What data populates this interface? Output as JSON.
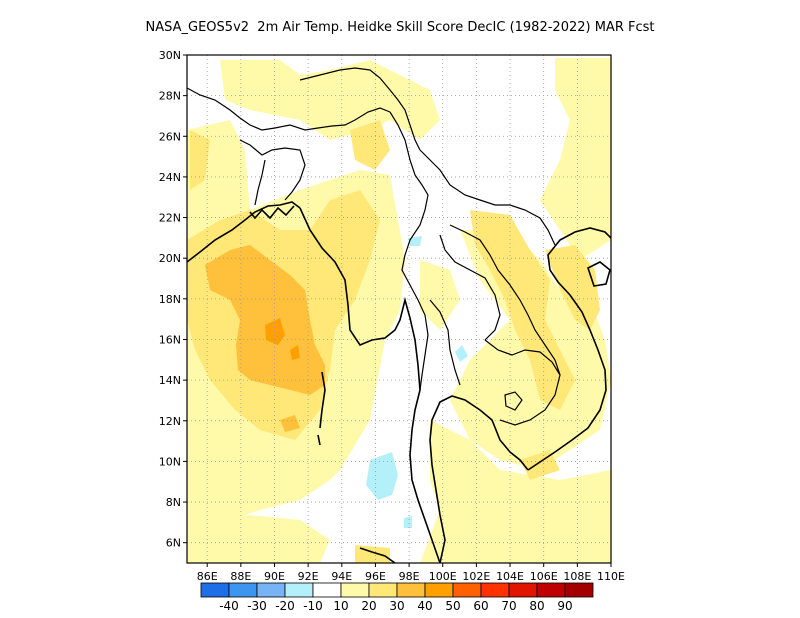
{
  "title": "NASA_GEOS5v2  2m Air Temp. Heidke Skill Score DecIC (1982-2022) MAR Fcst",
  "map": {
    "lat_labels": [
      "6N",
      "8N",
      "10N",
      "12N",
      "14N",
      "16N",
      "18N",
      "20N",
      "22N",
      "24N",
      "26N",
      "28N",
      "30N"
    ],
    "lat_values": [
      6,
      8,
      10,
      12,
      14,
      16,
      18,
      20,
      22,
      24,
      26,
      28,
      30
    ],
    "lon_labels": [
      "86E",
      "88E",
      "90E",
      "92E",
      "94E",
      "96E",
      "98E",
      "100E",
      "102E",
      "104E",
      "106E",
      "108E",
      "110E"
    ],
    "lon_values": [
      86,
      88,
      90,
      92,
      94,
      96,
      98,
      100,
      102,
      104,
      106,
      108,
      110
    ],
    "lon_range": [
      84.8,
      110
    ],
    "lat_range": [
      5,
      30
    ],
    "grid": true
  },
  "colorbar": {
    "colors": [
      "#1e6ee8",
      "#3c96f0",
      "#78b4f5",
      "#b4f0fa",
      "#ffffff",
      "#fffaaa",
      "#ffe878",
      "#ffc03c",
      "#ffa000",
      "#ff6000",
      "#ff3200",
      "#e11400",
      "#c00000",
      "#a50000"
    ],
    "labels": [
      "-40",
      "-30",
      "-20",
      "-10",
      "10",
      "20",
      "30",
      "40",
      "50",
      "60",
      "70",
      "80",
      "90"
    ]
  }
}
